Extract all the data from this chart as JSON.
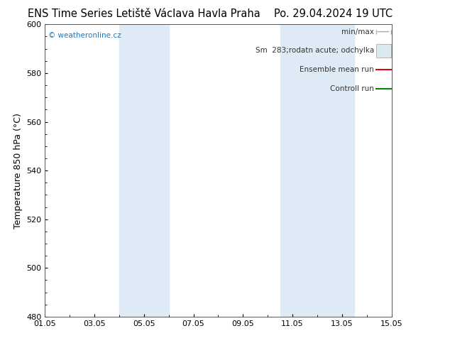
{
  "title_left": "ENS Time Series Letiště Václava Havla Praha",
  "title_right": "Po. 29.04.2024 19 UTC",
  "ylabel": "Temperature 850 hPa (°C)",
  "ylim": [
    480,
    600
  ],
  "yticks": [
    480,
    500,
    520,
    540,
    560,
    580,
    600
  ],
  "xlim": [
    1,
    15
  ],
  "xtick_labels": [
    "01.05",
    "03.05",
    "05.05",
    "07.05",
    "09.05",
    "11.05",
    "13.05",
    "15.05"
  ],
  "xtick_days": [
    1,
    3,
    5,
    7,
    9,
    11,
    13,
    15
  ],
  "shade_bands": [
    {
      "start_day": 4.0,
      "end_day": 6.0
    },
    {
      "start_day": 10.5,
      "end_day": 13.5
    }
  ],
  "shade_color": "#deeaf5",
  "watermark": "© weatheronline.cz",
  "watermark_color": "#1a78c2",
  "legend_items": [
    {
      "label": "min/max",
      "type": "hline",
      "color": "#aaaaaa"
    },
    {
      "label": "Sm  283;rodatn acute; odchylka",
      "type": "box",
      "color": "#dce8f0"
    },
    {
      "label": "Ensemble mean run",
      "type": "line",
      "color": "#ee0000"
    },
    {
      "label": "Controll run",
      "type": "line",
      "color": "#008800"
    }
  ],
  "background_color": "#ffffff",
  "plot_bg_color": "#ffffff",
  "border_color": "#555555",
  "title_fontsize": 10.5,
  "axis_fontsize": 9,
  "tick_fontsize": 8,
  "legend_fontsize": 7.5
}
